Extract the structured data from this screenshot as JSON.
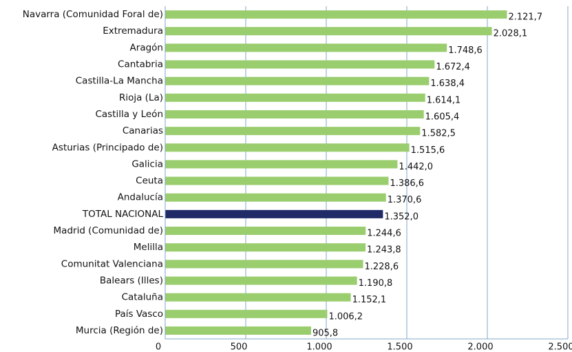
{
  "chart_data": {
    "type": "bar",
    "orientation": "horizontal",
    "categories": [
      "Navarra (Comunidad Foral de)",
      "Extremadura",
      "Aragón",
      "Cantabria",
      "Castilla-La Mancha",
      "Rioja (La)",
      "Castilla y León",
      "Canarias",
      "Asturias (Principado de)",
      "Galicia",
      "Ceuta",
      "Andalucía",
      "TOTAL NACIONAL",
      "Madrid (Comunidad de)",
      "Melilla",
      "Comunitat Valenciana",
      "Balears (Illes)",
      "Cataluña",
      "País Vasco",
      "Murcia (Región de)"
    ],
    "values": [
      2121.7,
      2028.1,
      1748.6,
      1672.4,
      1638.4,
      1614.1,
      1605.4,
      1582.5,
      1515.6,
      1442.0,
      1386.6,
      1370.6,
      1352.0,
      1244.6,
      1243.8,
      1228.6,
      1190.8,
      1152.1,
      1006.2,
      905.8
    ],
    "value_labels": [
      "2.121,7",
      "2.028,1",
      "1.748,6",
      "1.672,4",
      "1.638,4",
      "1.614,1",
      "1.605,4",
      "1.582,5",
      "1.515,6",
      "1.442,0",
      "1.386,6",
      "1.370,6",
      "1.352,0",
      "1.244,6",
      "1.243,8",
      "1.228,6",
      "1.190,8",
      "1.152,1",
      "1.006,2",
      "905,8"
    ],
    "colors": [
      "#9acd6e",
      "#9acd6e",
      "#9acd6e",
      "#9acd6e",
      "#9acd6e",
      "#9acd6e",
      "#9acd6e",
      "#9acd6e",
      "#9acd6e",
      "#9acd6e",
      "#9acd6e",
      "#9acd6e",
      "#1f2a66",
      "#9acd6e",
      "#9acd6e",
      "#9acd6e",
      "#9acd6e",
      "#9acd6e",
      "#9acd6e",
      "#9acd6e"
    ],
    "xlim": [
      0,
      2500
    ],
    "xticks": [
      0,
      500,
      {
        "value": 1000,
        "label": "1.000"
      },
      {
        "value": 1500,
        "label": "1.500"
      },
      {
        "value": 2000,
        "label": "2.000"
      },
      {
        "value": 2500,
        "label": "2.500"
      }
    ],
    "grid": true
  }
}
